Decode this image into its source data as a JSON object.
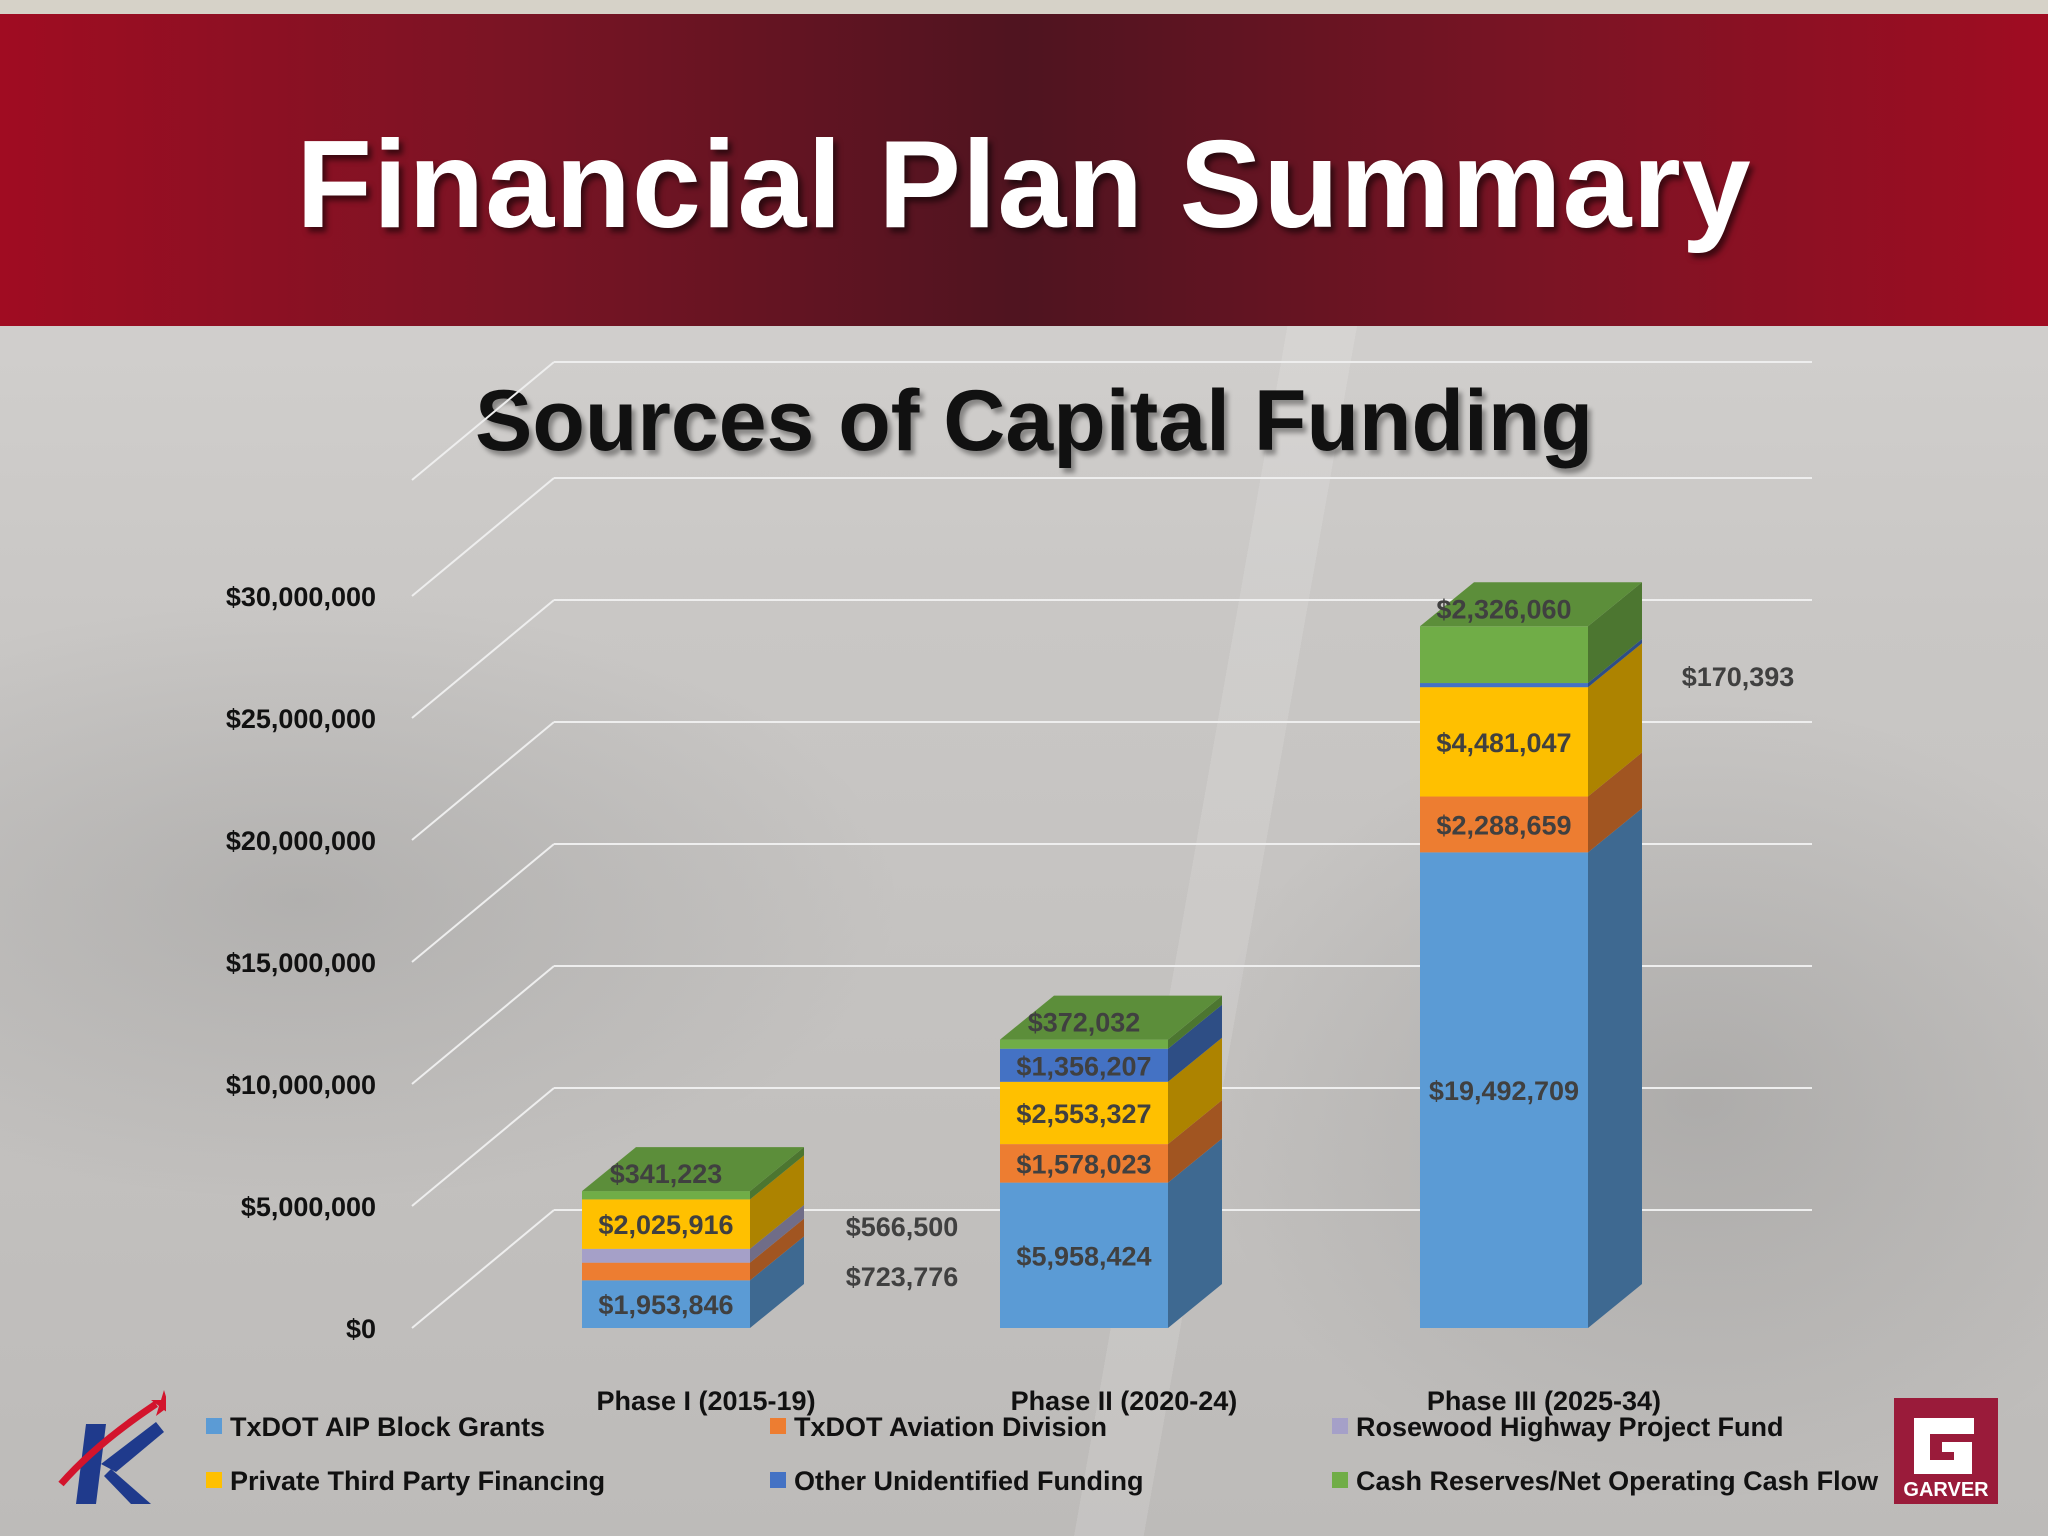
{
  "header": {
    "title": "Financial Plan Summary"
  },
  "slide": {
    "subtitle": "Sources of Capital Funding"
  },
  "logos": {
    "left": "TxDOT K star logo",
    "right": "GARVER"
  },
  "chart_data": {
    "type": "bar",
    "stacked": true,
    "three_d": true,
    "categories": [
      "Phase I (2015-19)",
      "Phase II (2020-24)",
      "Phase III (2025-34)"
    ],
    "ylim": [
      0,
      30000000
    ],
    "yticks": [
      0,
      5000000,
      10000000,
      15000000,
      20000000,
      25000000,
      30000000
    ],
    "ytick_labels": [
      "$0",
      "$5,000,000",
      "$10,000,000",
      "$15,000,000",
      "$20,000,000",
      "$25,000,000",
      "$30,000,000"
    ],
    "grid": true,
    "legend_position": "bottom",
    "series": [
      {
        "name": "TxDOT AIP Block Grants",
        "color": "#5b9bd5",
        "values": [
          1953846,
          5958424,
          19492709
        ],
        "labels": [
          "$1,953,846",
          "$5,958,424",
          "$19,492,709"
        ]
      },
      {
        "name": "TxDOT Aviation Division",
        "color": "#ed7d31",
        "values": [
          723776,
          1578023,
          2288659
        ],
        "labels": [
          "$723,776",
          "$1,578,023",
          "$2,288,659"
        ]
      },
      {
        "name": "Rosewood Highway Project Fund",
        "color": "#a5a0c8",
        "values": [
          566500,
          0,
          0
        ],
        "labels": [
          "$566,500",
          "",
          ""
        ]
      },
      {
        "name": "Private Third Party Financing",
        "color": "#ffc000",
        "values": [
          2025916,
          2553327,
          4481047
        ],
        "labels": [
          "$2,025,916",
          "$2,553,327",
          "$4,481,047"
        ]
      },
      {
        "name": "Other Unidentified Funding",
        "color": "#4472c4",
        "values": [
          0,
          1356207,
          170393
        ],
        "labels": [
          "",
          "$1,356,207",
          "$170,393"
        ]
      },
      {
        "name": "Cash Reserves/Net Operating Cash Flow",
        "color": "#70ad47",
        "values": [
          341223,
          372032,
          2326060
        ],
        "labels": [
          "$341,223",
          "$372,032",
          "$2,326,060"
        ]
      }
    ]
  }
}
